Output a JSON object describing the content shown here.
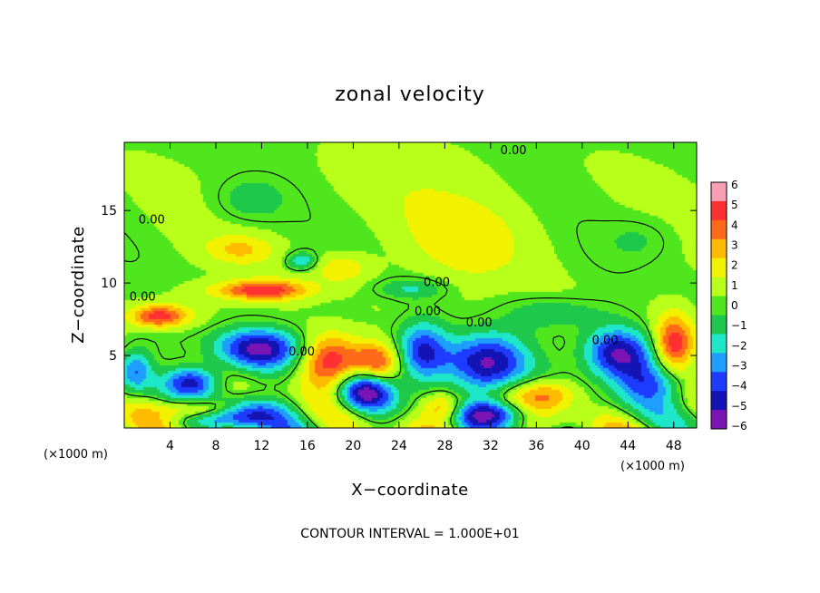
{
  "chart_data": {
    "type": "heatmap",
    "title": "zonal velocity",
    "xlabel": "X−coordinate",
    "ylabel": "Z−coordinate",
    "x_unit_label": "(×1000 m)",
    "x_ticks": [
      4,
      8,
      12,
      16,
      20,
      24,
      28,
      32,
      36,
      40,
      44,
      48
    ],
    "y_ticks": [
      5,
      10,
      15
    ],
    "xlim": [
      0,
      50
    ],
    "ylim": [
      0,
      19.7
    ],
    "colorbar": {
      "ticks": [
        6,
        5,
        4,
        3,
        2,
        1,
        0,
        -1,
        -2,
        -3,
        -4,
        -5,
        -6
      ],
      "colors": [
        "#f7a0b4",
        "#ff3030",
        "#ff6a1a",
        "#ffbb00",
        "#f2f200",
        "#b8ff1a",
        "#50e61e",
        "#1ec84a",
        "#1ee6c8",
        "#1e9eff",
        "#1e3cff",
        "#1414b4",
        "#7a14b4"
      ]
    },
    "contour_labels": [
      {
        "text": "0.00",
        "x": 2.4,
        "y": 14.1
      },
      {
        "text": "0.00",
        "x": 1.6,
        "y": 8.8
      },
      {
        "text": "0.00",
        "x": 15.5,
        "y": 5.0
      },
      {
        "text": "0.00",
        "x": 27.3,
        "y": 9.8
      },
      {
        "text": "0.00",
        "x": 26.5,
        "y": 7.8
      },
      {
        "text": "0.00",
        "x": 31.0,
        "y": 7.0
      },
      {
        "text": "0.00",
        "x": 42.0,
        "y": 5.8
      },
      {
        "text": "0.00",
        "x": 34.0,
        "y": 18.9
      }
    ],
    "field_features": [
      {
        "x": 12,
        "y": 5.5,
        "v": -6,
        "sx": 4,
        "sy": 1.4
      },
      {
        "x": 6,
        "y": 3.2,
        "v": -5,
        "sx": 2.4,
        "sy": 1
      },
      {
        "x": 10,
        "y": 1,
        "v": -6,
        "sx": 4,
        "sy": 1.1
      },
      {
        "x": 21,
        "y": 2.5,
        "v": -6,
        "sx": 2.4,
        "sy": 1.4
      },
      {
        "x": 26,
        "y": 5,
        "v": -5,
        "sx": 2.2,
        "sy": 2.2
      },
      {
        "x": 32,
        "y": 4.5,
        "v": -6,
        "sx": 3.4,
        "sy": 2.2
      },
      {
        "x": 32,
        "y": 1,
        "v": -5,
        "sx": 3.5,
        "sy": 0.9
      },
      {
        "x": 43,
        "y": 5,
        "v": -6,
        "sx": 3,
        "sy": 1.8
      },
      {
        "x": 46,
        "y": 3,
        "v": -4,
        "sx": 3,
        "sy": 1.5
      },
      {
        "x": 18,
        "y": 4.5,
        "v": 5,
        "sx": 2.6,
        "sy": 2
      },
      {
        "x": 22,
        "y": 4.5,
        "v": 4,
        "sx": 2,
        "sy": 1.4
      },
      {
        "x": 12,
        "y": 9.5,
        "v": 5,
        "sx": 4,
        "sy": 0.7
      },
      {
        "x": 3,
        "y": 7.7,
        "v": 5,
        "sx": 2.5,
        "sy": 0.8
      },
      {
        "x": 7,
        "y": 1.3,
        "v": 5,
        "sx": 3.5,
        "sy": 0.7
      },
      {
        "x": 48,
        "y": 5.7,
        "v": 5,
        "sx": 1.7,
        "sy": 2
      },
      {
        "x": 37,
        "y": 2.3,
        "v": 4,
        "sx": 3,
        "sy": 1.2
      },
      {
        "x": 28,
        "y": 1.3,
        "v": 4,
        "sx": 2,
        "sy": 1
      },
      {
        "x": 15.5,
        "y": 11.5,
        "v": -3,
        "sx": 1.3,
        "sy": 0.6
      },
      {
        "x": 10,
        "y": 12.3,
        "v": 2,
        "sx": 3,
        "sy": 1
      },
      {
        "x": 19,
        "y": 11,
        "v": 2,
        "sx": 2.5,
        "sy": 1
      },
      {
        "x": 25,
        "y": 9.6,
        "v": -2,
        "sx": 3,
        "sy": 0.7
      },
      {
        "x": 11,
        "y": 15.7,
        "v": -1.5,
        "sx": 3,
        "sy": 1.5
      },
      {
        "x": 30,
        "y": 13,
        "v": 1.5,
        "sx": 6,
        "sy": 3
      },
      {
        "x": 25,
        "y": 16.5,
        "v": 0.5,
        "sx": 8,
        "sy": 3
      },
      {
        "x": 45,
        "y": 13,
        "v": -1,
        "sx": 3,
        "sy": 1.5
      },
      {
        "x": 1,
        "y": 4,
        "v": -4,
        "sx": 1.5,
        "sy": 1.5
      },
      {
        "x": 38,
        "y": 8,
        "v": -1.5,
        "sx": 4,
        "sy": 1
      }
    ]
  },
  "footer": {
    "contour_interval": "CONTOUR INTERVAL = 1.000E+01"
  },
  "colors": {
    "background": "#ffffff",
    "ink": "#000000"
  }
}
